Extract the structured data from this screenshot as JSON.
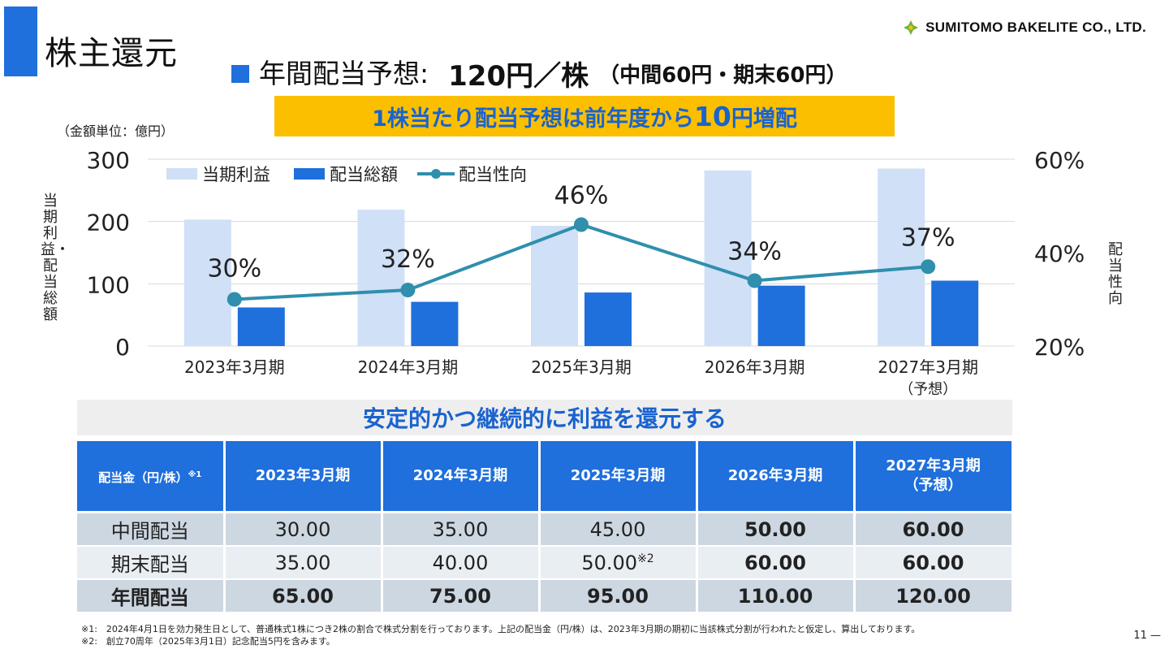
{
  "header": {
    "title": "株主還元",
    "logo_text": "SUMITOMO BAKELITE CO., LTD.",
    "headline_label": "年間配当予想:",
    "headline_amount": "120円／株",
    "headline_detail": "（中間60円・期末60円）",
    "banner_prefix": "1株当たり配当予想は前年度から",
    "banner_big": "10",
    "banner_suffix": "円増配"
  },
  "chart_data": {
    "type": "bar",
    "unit_note": "（金額単位：億円）",
    "categories": [
      "2023年3月期",
      "2024年3月期",
      "2025年3月期",
      "2026年3月期",
      "2027年3月期"
    ],
    "category_sub": [
      "",
      "",
      "",
      "",
      "（予想）"
    ],
    "ylabel_left": "当期利益・配当総額",
    "ylabel_right": "配当性向",
    "ylim_left": [
      0,
      300
    ],
    "yticks_left": [
      "0",
      "100",
      "200",
      "300"
    ],
    "ylim_right": [
      20,
      60
    ],
    "yticks_right": [
      "20%",
      "40%",
      "60%"
    ],
    "legend_position": "top-left",
    "grid": true,
    "series": [
      {
        "name": "当期利益",
        "kind": "bar",
        "color": "#cfe0f7",
        "values": [
          203,
          219,
          193,
          282,
          285
        ]
      },
      {
        "name": "配当総額",
        "kind": "bar",
        "color": "#1f6fdc",
        "values": [
          62,
          71,
          86,
          97,
          105
        ]
      },
      {
        "name": "配当性向",
        "kind": "line",
        "axis": "right",
        "color": "#2f8fad",
        "values": [
          30,
          32,
          46,
          34,
          37
        ],
        "labels": [
          "30%",
          "32%",
          "46%",
          "34%",
          "37%"
        ]
      }
    ]
  },
  "band_text": "安定的かつ継続的に利益を還元する",
  "table": {
    "header_first": "配当金（円/株）",
    "header_first_note": "※1",
    "columns": [
      {
        "label": "2023年3月期",
        "sub": ""
      },
      {
        "label": "2024年3月期",
        "sub": ""
      },
      {
        "label": "2025年3月期",
        "sub": ""
      },
      {
        "label": "2026年3月期",
        "sub": ""
      },
      {
        "label": "2027年3月期",
        "sub": "（予想）"
      }
    ],
    "rows": [
      {
        "label": "中間配当",
        "values": [
          "30.00",
          "35.00",
          "45.00",
          "50.00",
          "60.00"
        ],
        "notes": [
          "",
          "",
          "",
          "",
          ""
        ]
      },
      {
        "label": "期末配当",
        "values": [
          "35.00",
          "40.00",
          "50.00",
          "60.00",
          "60.00"
        ],
        "notes": [
          "",
          "",
          "※2",
          "",
          ""
        ]
      },
      {
        "label": "年間配当",
        "values": [
          "65.00",
          "75.00",
          "95.00",
          "110.00",
          "120.00"
        ],
        "notes": [
          "",
          "",
          "",
          "",
          ""
        ]
      }
    ]
  },
  "footnotes": {
    "note1": "※1:　2024年4月1日を効力発生日として、普通株式1株につき2株の割合で株式分割を行っております。上記の配当金（円/株）は、2023年3月期の期初に当該株式分割が行われたと仮定し、算出しております。",
    "note2": "※2:　創立70周年（2025年3月1日）記念配当5円を含みます。"
  },
  "page_number": "11 —"
}
